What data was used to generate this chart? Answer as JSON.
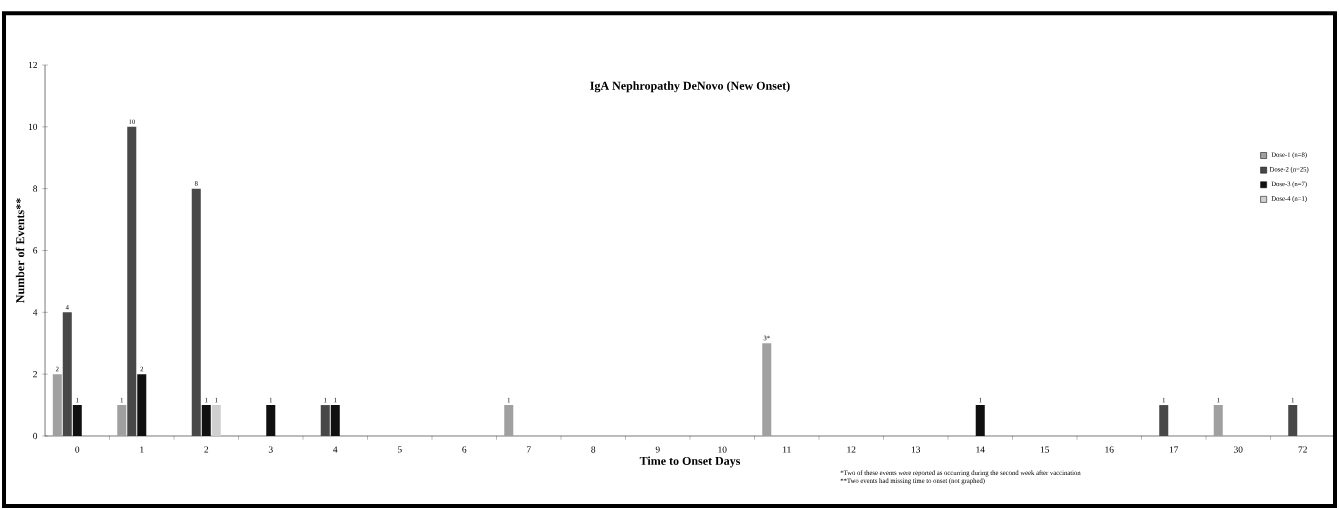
{
  "chart_data": {
    "type": "bar",
    "title": "IgA Nephropathy  DeNovo (New Onset)",
    "xlabel": "Time to Onset Days",
    "ylabel": "Number of Events**",
    "categories": [
      "0",
      "1",
      "2",
      "3",
      "4",
      "5",
      "6",
      "7",
      "8",
      "9",
      "10",
      "11",
      "12",
      "13",
      "14",
      "15",
      "16",
      "17",
      "30",
      "72"
    ],
    "series": [
      {
        "name": "Dose-1 (n=8)",
        "color": "#a0a0a0",
        "values": [
          2,
          1,
          0,
          0,
          0,
          0,
          0,
          1,
          0,
          0,
          0,
          3,
          0,
          0,
          0,
          0,
          0,
          0,
          1,
          0
        ],
        "value_labels": [
          "2",
          "1",
          null,
          null,
          null,
          null,
          null,
          "1",
          null,
          null,
          null,
          "3*",
          null,
          null,
          null,
          null,
          null,
          null,
          "1",
          null
        ]
      },
      {
        "name": "Dose-2 (n=25)",
        "color": "#484848",
        "values": [
          4,
          10,
          8,
          0,
          1,
          0,
          0,
          0,
          0,
          0,
          0,
          0,
          0,
          0,
          0,
          0,
          0,
          1,
          0,
          1
        ],
        "value_labels": [
          "4",
          "10",
          "8",
          null,
          "1",
          null,
          null,
          null,
          null,
          null,
          null,
          null,
          null,
          null,
          null,
          null,
          null,
          "1",
          null,
          "1"
        ]
      },
      {
        "name": "Dose-3 (n=7)",
        "color": "#101010",
        "values": [
          1,
          2,
          1,
          1,
          1,
          0,
          0,
          0,
          0,
          0,
          0,
          0,
          0,
          0,
          1,
          0,
          0,
          0,
          0,
          0
        ],
        "value_labels": [
          "1",
          "2",
          "1",
          "1",
          "1",
          null,
          null,
          null,
          null,
          null,
          null,
          null,
          null,
          null,
          "1",
          null,
          null,
          null,
          null,
          null
        ]
      },
      {
        "name": "Dose-4 (n=1)",
        "color": "#d0d0d0",
        "values": [
          0,
          0,
          1,
          0,
          0,
          0,
          0,
          0,
          0,
          0,
          0,
          0,
          0,
          0,
          0,
          0,
          0,
          0,
          0,
          0
        ],
        "value_labels": [
          null,
          null,
          "1",
          null,
          null,
          null,
          null,
          null,
          null,
          null,
          null,
          null,
          null,
          null,
          null,
          null,
          null,
          null,
          null,
          null
        ]
      }
    ],
    "ylim": [
      0,
      12
    ],
    "yticks": [
      0,
      2,
      4,
      6,
      8,
      10,
      12
    ],
    "legend": "right",
    "grid": false,
    "annotations": [
      "*Two of these events were reported as occurring during the second week after vaccination",
      "**Two events had missing time to onset (not graphed)"
    ]
  }
}
